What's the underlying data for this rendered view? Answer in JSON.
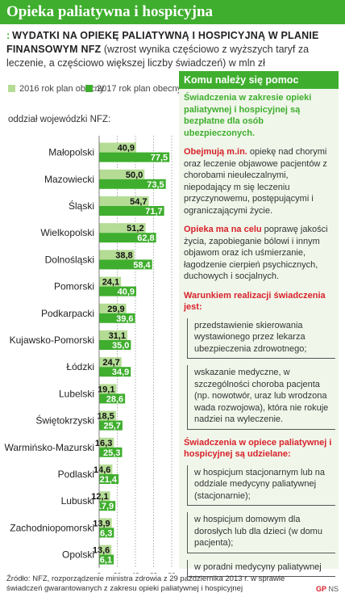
{
  "title": "Opieka paliatywna i hospicyjna",
  "heading": {
    "mark": ":",
    "bold": "Wydatki na opiekę paliatywną i hospicyjną w planie finansowym NFZ",
    "normal": "(wzrost wynika częściowo z wyższych taryf za leczenie, a częściowo większej liczby świadczeń) w mln zł"
  },
  "colors": {
    "light": "#b5dc95",
    "dark": "#3fae2e",
    "red": "#d8212b"
  },
  "chart_data": {
    "type": "bar",
    "orientation": "horizontal",
    "axis_title": "oddział wojewódzki NFZ:",
    "categories": [
      "Małopolski",
      "Mazowiecki",
      "Śląski",
      "Wielkopolski",
      "Dolnośląski",
      "Pomorski",
      "Podkarpacki",
      "Kujawsko-Pomorski",
      "Łódzki",
      "Lubelski",
      "Świętokrzyski",
      "Warmińsko-Mazurski",
      "Podlaski",
      "Lubuski",
      "Zachodniopomorski",
      "Opolski"
    ],
    "series": [
      {
        "name": "2016 rok plan obecny",
        "color": "#b5dc95",
        "values": [
          40.9,
          50.0,
          54.7,
          51.2,
          38.8,
          24.1,
          29.9,
          31.1,
          24.7,
          19.1,
          18.5,
          16.3,
          14.6,
          12.1,
          13.9,
          13.6
        ]
      },
      {
        "name": "2017 rok plan obecny",
        "color": "#3fae2e",
        "values": [
          77.5,
          73.5,
          71.7,
          62.8,
          58.4,
          40.9,
          39.6,
          35.0,
          34.9,
          28.6,
          25.7,
          25.3,
          21.4,
          17.9,
          16.3,
          16.1
        ]
      }
    ],
    "labels_2016": [
      "40,9",
      "50,0",
      "54,7",
      "51,2",
      "38,8",
      "24,1",
      "29,9",
      "31,1",
      "24,7",
      "19,1",
      "18,5",
      "16,3",
      "14,6",
      "12,1",
      "13,9",
      "13,6"
    ],
    "labels_2017": [
      "77,5",
      "73,5",
      "71,7",
      "62,8",
      "58,4",
      "40,9",
      "39,6",
      "35,0",
      "34,9",
      "28,6",
      "25,7",
      "25,3",
      "21,4",
      "17,9",
      "16,3",
      "16,1"
    ],
    "xlim": [
      0,
      80
    ],
    "xticks": [
      0,
      20,
      40,
      60,
      80
    ],
    "grid": true
  },
  "info": {
    "header": "Komu należy się pomoc",
    "p1": "Świadczenia w zakresie opieki paliatywnej i hospicyjnej są bezpłatne dla osób ubezpieczonych.",
    "p2_lead": "Obejmują m.in.",
    "p2_text": " opiekę nad chorymi oraz leczenie objawowe pacjentów z chorobami nieuleczalnymi, niepodający m się leczeniu przyczynowemu, postępującymi i ograniczającymi życie.",
    "p3_lead": "Opieka ma na celu",
    "p3_text": " poprawę jakości życia, zapobieganie bólowi i innym objawom oraz ich uśmierzanie, łagodzenie cierpień psychicznych, duchowych i socjalnych.",
    "p4_lead": "Warunkiem realizacji świadczenia jest:",
    "conditions": [
      "przedstawienie skierowania wystawionego przez lekarza ubezpieczenia zdrowotnego;",
      "wskazanie medyczne, w szczególności choroba pacjenta (np. nowotwór, uraz lub wrodzona wada rozwojowa), która nie rokuje nadziei na wyleczenie."
    ],
    "p5_lead": "Świadczenia w opiece paliatywnej i hospicyjnej są udzielane:",
    "places": [
      "w hospicjum stacjonarnym lub na oddziale medycyny paliatywnej (stacjonarnie);",
      "w hospicjum domowym dla dorosłych lub dla dzieci (w domu pacjenta);",
      "w poradni medycyny paliatywnej"
    ]
  },
  "source": "Źródło: NFZ, rozporządzenie ministra zdrowia z 29 października 2013 r. w sprawie świadczeń gwarantowanych z zakresu opieki paliatywnej i hospicyjnej",
  "logo": {
    "mark": "GP",
    "text": "NS"
  }
}
